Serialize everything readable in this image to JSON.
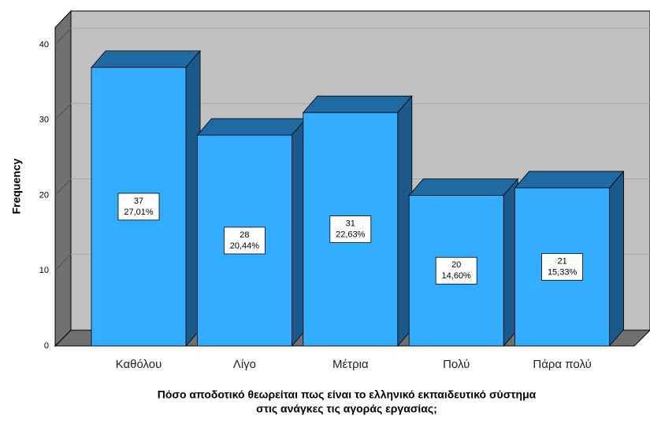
{
  "chart_data": {
    "type": "bar3d",
    "x_label": [
      "Πόσο αποδοτικό θεωρείται πως είναι το ελληνικό εκπαιδευτικό σύστημα",
      "στις ανάγκες τις αγοράς εργασίας;"
    ],
    "y_label": "Frequency",
    "categories": [
      "Καθόλου",
      "Λίγο",
      "Μέτρια",
      "Πολύ",
      "Πάρα πολύ"
    ],
    "values": [
      37,
      28,
      31,
      20,
      21
    ],
    "percents": [
      27.01,
      20.44,
      22.63,
      14.6,
      15.33
    ],
    "percent_labels": [
      "27,01%",
      "20,44%",
      "22,63%",
      "14,60%",
      "15,33%"
    ],
    "color": "#33adff",
    "ylim": [
      0,
      42.3
    ],
    "yticks": [
      0,
      10,
      20,
      30,
      40
    ],
    "grid": true
  }
}
